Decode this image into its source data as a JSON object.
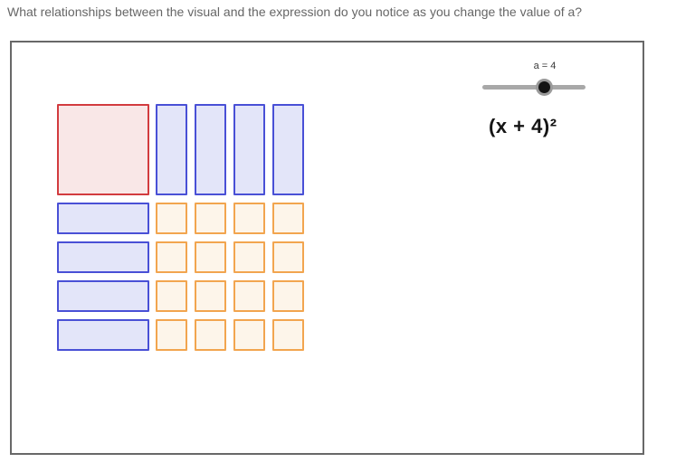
{
  "question": "What relationships between the visual and the expression do you notice as you change the value of a?",
  "applet": {
    "slider": {
      "label": "a = 4",
      "variable": "a",
      "value": 4
    },
    "expression": "(x + 4)²",
    "tiles": {
      "x_squared_count": 1,
      "x_vertical_count": 4,
      "x_horizontal_count": 4,
      "unit_rows": 4,
      "unit_cols": 4
    },
    "colors": {
      "x_squared_fill": "#f9e7e7",
      "x_squared_border": "#d23b3f",
      "x_fill": "#e3e5f9",
      "x_border": "#4950d6",
      "unit_fill": "#fdf5ea",
      "unit_border": "#f2a54f",
      "slider_track": "#a8a8a8",
      "slider_knob": "#141414",
      "canvas_border": "#686868",
      "question_text": "#666666"
    }
  }
}
